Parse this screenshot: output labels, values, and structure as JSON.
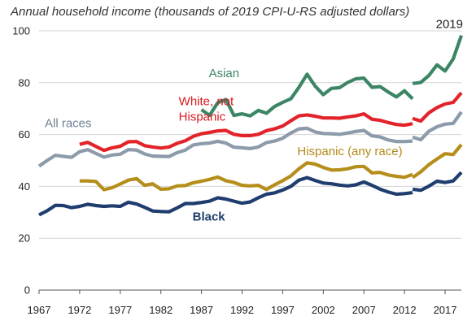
{
  "chart_data": {
    "type": "line",
    "title": "Annual household income (thousands of 2019 CPI-U-RS adjusted dollars)",
    "xlabel": "",
    "ylabel": "",
    "xlim": [
      1967,
      2019
    ],
    "ylim": [
      0,
      100
    ],
    "x_ticks": [
      1967,
      1972,
      1977,
      1982,
      1987,
      1992,
      1997,
      2002,
      2007,
      2012,
      2017
    ],
    "y_ticks": [
      0,
      20,
      40,
      60,
      80,
      100
    ],
    "grid": "horizontal",
    "annotations": [
      {
        "text": "2019",
        "x": 2019,
        "y": 98
      }
    ],
    "series": [
      {
        "name": "All races",
        "color": "#8c9aaa",
        "label_color": "#6f7f93",
        "label_lines": [
          "All races"
        ],
        "label_bold": false,
        "label_at": [
          1967.7,
          62.8
        ],
        "segments": [
          [
            [
              1967,
              47.8
            ],
            [
              1968,
              50
            ],
            [
              1969,
              52
            ],
            [
              1970,
              51.6
            ],
            [
              1971,
              51.2
            ],
            [
              1972,
              53.4
            ],
            [
              1973,
              54.2
            ],
            [
              1974,
              52.7
            ],
            [
              1975,
              51.3
            ],
            [
              1976,
              52.1
            ],
            [
              1977,
              52.4
            ],
            [
              1978,
              54.2
            ],
            [
              1979,
              54
            ],
            [
              1980,
              52.5
            ],
            [
              1981,
              51.7
            ],
            [
              1982,
              51.6
            ],
            [
              1983,
              51.5
            ],
            [
              1984,
              53
            ],
            [
              1985,
              54
            ],
            [
              1986,
              56
            ],
            [
              1987,
              56.5
            ],
            [
              1988,
              56.7
            ],
            [
              1989,
              57.4
            ],
            [
              1990,
              56.7
            ],
            [
              1991,
              55.1
            ],
            [
              1992,
              54.9
            ],
            [
              1993,
              54.6
            ],
            [
              1994,
              55.2
            ],
            [
              1995,
              56.9
            ],
            [
              1996,
              57.5
            ],
            [
              1997,
              58.6
            ],
            [
              1998,
              60.6
            ],
            [
              1999,
              62.2
            ],
            [
              2000,
              62.4
            ],
            [
              2001,
              61
            ],
            [
              2002,
              60.4
            ],
            [
              2003,
              60.3
            ],
            [
              2004,
              60.1
            ],
            [
              2005,
              60.6
            ],
            [
              2006,
              61.2
            ],
            [
              2007,
              61.6
            ],
            [
              2008,
              59.5
            ],
            [
              2009,
              59.1
            ],
            [
              2010,
              57.9
            ],
            [
              2011,
              57.3
            ],
            [
              2012,
              57.3
            ],
            [
              2013,
              57.5
            ]
          ],
          [
            [
              2013,
              59
            ],
            [
              2014,
              58
            ],
            [
              2015,
              61.3
            ],
            [
              2016,
              63
            ],
            [
              2017,
              64
            ],
            [
              2018,
              64.3
            ],
            [
              2019,
              68.7
            ]
          ]
        ]
      },
      {
        "name": "White, not Hispanic",
        "color": "#e2232a",
        "label_color": "#d71920",
        "label_lines": [
          "White, not",
          "Hispanic"
        ],
        "label_bold": false,
        "label_at": [
          1984.2,
          71.3
        ],
        "segments": [
          [
            [
              1972,
              56.2
            ],
            [
              1973,
              57
            ],
            [
              1974,
              55.4
            ],
            [
              1975,
              53.9
            ],
            [
              1976,
              54.9
            ],
            [
              1977,
              55.5
            ],
            [
              1978,
              57.2
            ],
            [
              1979,
              57.3
            ],
            [
              1980,
              55.7
            ],
            [
              1981,
              55.2
            ],
            [
              1982,
              54.8
            ],
            [
              1983,
              55.2
            ],
            [
              1984,
              56.6
            ],
            [
              1985,
              57.6
            ],
            [
              1986,
              59.3
            ],
            [
              1987,
              60.3
            ],
            [
              1988,
              60.8
            ],
            [
              1989,
              61.4
            ],
            [
              1990,
              61.6
            ],
            [
              1991,
              60.1
            ],
            [
              1992,
              59.6
            ],
            [
              1993,
              59.6
            ],
            [
              1994,
              60.1
            ],
            [
              1995,
              61.5
            ],
            [
              1996,
              62.2
            ],
            [
              1997,
              63.3
            ],
            [
              1998,
              65.3
            ],
            [
              1999,
              67.2
            ],
            [
              2000,
              67.6
            ],
            [
              2001,
              67.1
            ],
            [
              2002,
              66.4
            ],
            [
              2003,
              66.4
            ],
            [
              2004,
              66.3
            ],
            [
              2005,
              66.8
            ],
            [
              2006,
              67.2
            ],
            [
              2007,
              68
            ],
            [
              2008,
              65.9
            ],
            [
              2009,
              65.5
            ],
            [
              2010,
              64.6
            ],
            [
              2011,
              63.9
            ],
            [
              2012,
              63.6
            ],
            [
              2013,
              64.2
            ]
          ],
          [
            [
              2013,
              66.2
            ],
            [
              2014,
              65.2
            ],
            [
              2015,
              68.4
            ],
            [
              2016,
              70.4
            ],
            [
              2017,
              71.8
            ],
            [
              2018,
              72.4
            ],
            [
              2019,
              76.1
            ]
          ]
        ]
      },
      {
        "name": "Asian",
        "color": "#3c8666",
        "label_color": "#3c8666",
        "label_lines": [
          "Asian"
        ],
        "label_bold": false,
        "label_at": [
          1987.9,
          82.2
        ],
        "segments": [
          [
            [
              1987,
              69.6
            ],
            [
              1988,
              67.4
            ],
            [
              1989,
              72.3
            ],
            [
              1990,
              73.5
            ],
            [
              1991,
              67.4
            ],
            [
              1992,
              68
            ],
            [
              1993,
              67.2
            ],
            [
              1994,
              69.3
            ],
            [
              1995,
              68.2
            ],
            [
              1996,
              70.8
            ],
            [
              1997,
              72.4
            ],
            [
              1998,
              73.8
            ],
            [
              1999,
              78.2
            ],
            [
              2000,
              83.3
            ],
            [
              2001,
              78.7
            ],
            [
              2002,
              75.4
            ],
            [
              2003,
              77.8
            ],
            [
              2004,
              78.1
            ],
            [
              2005,
              80.1
            ],
            [
              2006,
              81.5
            ],
            [
              2007,
              81.8
            ],
            [
              2008,
              78.2
            ],
            [
              2009,
              78.5
            ],
            [
              2010,
              76.4
            ],
            [
              2011,
              74.5
            ],
            [
              2012,
              76.9
            ],
            [
              2013,
              73.8
            ]
          ],
          [
            [
              2013,
              79.7
            ],
            [
              2014,
              80.1
            ],
            [
              2015,
              82.8
            ],
            [
              2016,
              86.9
            ],
            [
              2017,
              84.5
            ],
            [
              2018,
              89.2
            ],
            [
              2019,
              98.2
            ]
          ]
        ]
      },
      {
        "name": "Hispanic (any race)",
        "color": "#b58e1b",
        "label_color": "#b08a18",
        "label_lines": [
          "Hispanic (any race)"
        ],
        "label_bold": false,
        "label_at": [
          1998.8,
          52
        ],
        "segments": [
          [
            [
              1972,
              42.1
            ],
            [
              1973,
              42.1
            ],
            [
              1974,
              41.9
            ],
            [
              1975,
              38.7
            ],
            [
              1976,
              39.5
            ],
            [
              1977,
              40.9
            ],
            [
              1978,
              42.4
            ],
            [
              1979,
              43
            ],
            [
              1980,
              40.4
            ],
            [
              1981,
              41
            ],
            [
              1982,
              38.9
            ],
            [
              1983,
              39.1
            ],
            [
              1984,
              40.2
            ],
            [
              1985,
              40.3
            ],
            [
              1986,
              41.4
            ],
            [
              1987,
              42
            ],
            [
              1988,
              42.7
            ],
            [
              1989,
              43.6
            ],
            [
              1990,
              42.2
            ],
            [
              1991,
              41.5
            ],
            [
              1992,
              40.4
            ],
            [
              1993,
              40.2
            ],
            [
              1994,
              40.4
            ],
            [
              1995,
              38.8
            ],
            [
              1996,
              40.6
            ],
            [
              1997,
              42.2
            ],
            [
              1998,
              44
            ],
            [
              1999,
              46.8
            ],
            [
              2000,
              49.1
            ],
            [
              2001,
              48.6
            ],
            [
              2002,
              47.3
            ],
            [
              2003,
              46.3
            ],
            [
              2004,
              46.4
            ],
            [
              2005,
              46.8
            ],
            [
              2006,
              47.6
            ],
            [
              2007,
              47.7
            ],
            [
              2008,
              45.2
            ],
            [
              2009,
              45.4
            ],
            [
              2010,
              44.4
            ],
            [
              2011,
              43.9
            ],
            [
              2012,
              43.5
            ],
            [
              2013,
              44.6
            ]
          ],
          [
            [
              2013,
              43.4
            ],
            [
              2014,
              45.6
            ],
            [
              2015,
              48.4
            ],
            [
              2016,
              50.6
            ],
            [
              2017,
              52.6
            ],
            [
              2018,
              52.3
            ],
            [
              2019,
              56.1
            ]
          ]
        ]
      },
      {
        "name": "Black",
        "color": "#1f3d6e",
        "label_color": "#1f3d6e",
        "label_lines": [
          "Black"
        ],
        "label_bold": true,
        "label_at": [
          1985.9,
          26.8
        ],
        "segments": [
          [
            [
              1967,
              29
            ],
            [
              1968,
              30.6
            ],
            [
              1969,
              32.7
            ],
            [
              1970,
              32.6
            ],
            [
              1971,
              31.8
            ],
            [
              1972,
              32.3
            ],
            [
              1973,
              33.1
            ],
            [
              1974,
              32.6
            ],
            [
              1975,
              32.3
            ],
            [
              1976,
              32.5
            ],
            [
              1977,
              32.3
            ],
            [
              1978,
              33.9
            ],
            [
              1979,
              33.2
            ],
            [
              1980,
              31.9
            ],
            [
              1981,
              30.5
            ],
            [
              1982,
              30.3
            ],
            [
              1983,
              30.2
            ],
            [
              1984,
              31.7
            ],
            [
              1985,
              33.4
            ],
            [
              1986,
              33.4
            ],
            [
              1987,
              33.8
            ],
            [
              1988,
              34.3
            ],
            [
              1989,
              35.6
            ],
            [
              1990,
              35.1
            ],
            [
              1991,
              34.3
            ],
            [
              1992,
              33.5
            ],
            [
              1993,
              34
            ],
            [
              1994,
              35.6
            ],
            [
              1995,
              37
            ],
            [
              1996,
              37.5
            ],
            [
              1997,
              38.6
            ],
            [
              1998,
              40
            ],
            [
              1999,
              42.4
            ],
            [
              2000,
              43.4
            ],
            [
              2001,
              42.3
            ],
            [
              2002,
              41.3
            ],
            [
              2003,
              41
            ],
            [
              2004,
              40.5
            ],
            [
              2005,
              40.2
            ],
            [
              2006,
              40.6
            ],
            [
              2007,
              41.7
            ],
            [
              2008,
              40.4
            ],
            [
              2009,
              38.9
            ],
            [
              2010,
              37.8
            ],
            [
              2011,
              37
            ],
            [
              2012,
              37.2
            ],
            [
              2013,
              37.6
            ]
          ],
          [
            [
              2013,
              38.9
            ],
            [
              2014,
              38.5
            ],
            [
              2015,
              40.1
            ],
            [
              2016,
              42
            ],
            [
              2017,
              41.5
            ],
            [
              2018,
              42.1
            ],
            [
              2019,
              45.4
            ]
          ]
        ]
      }
    ]
  }
}
